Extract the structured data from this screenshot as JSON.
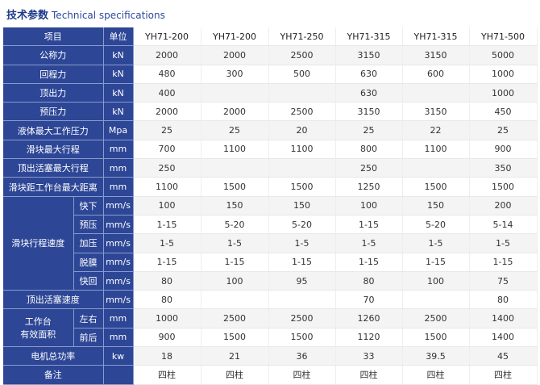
{
  "title": {
    "cn": "技术参数",
    "en": "Technical specifications"
  },
  "header": [
    "项目",
    "单位",
    "YH71-200",
    "YH71-200",
    "YH71-250",
    "YH71-315",
    "YH71-315",
    "YH71-500"
  ],
  "rows": [
    {
      "label": "公称力",
      "unit": "kN",
      "values": [
        "2000",
        "2000",
        "2500",
        "3150",
        "3150",
        "5000"
      ]
    },
    {
      "label": "回程力",
      "unit": "kN",
      "values": [
        "480",
        "300",
        "500",
        "630",
        "600",
        "1000"
      ]
    },
    {
      "label": "顶出力",
      "unit": "kN",
      "values": [
        "400",
        "",
        "",
        "630",
        "",
        "1000"
      ]
    },
    {
      "label": "预压力",
      "unit": "kN",
      "values": [
        "2000",
        "2000",
        "2500",
        "3150",
        "3150",
        "450"
      ]
    },
    {
      "label": "液体最大工作压力",
      "unit": "Mpa",
      "values": [
        "25",
        "25",
        "20",
        "25",
        "22",
        "25"
      ]
    },
    {
      "label": "滑块最大行程",
      "unit": "mm",
      "values": [
        "700",
        "1100",
        "1100",
        "800",
        "1100",
        "900"
      ]
    },
    {
      "label": "顶出活塞最大行程",
      "unit": "mm",
      "values": [
        "250",
        "",
        "",
        "250",
        "",
        "350"
      ]
    },
    {
      "label": "滑块距工作台最大距离",
      "unit": "mm",
      "values": [
        "1100",
        "1500",
        "1500",
        "1250",
        "1500",
        "1500"
      ]
    }
  ],
  "speed": {
    "label": "滑块行程速度",
    "subrows": [
      {
        "label": "快下",
        "unit": "mm/s",
        "values": [
          "100",
          "150",
          "150",
          "100",
          "150",
          "200"
        ]
      },
      {
        "label": "预压",
        "unit": "mm/s",
        "values": [
          "1-15",
          "5-20",
          "5-20",
          "1-15",
          "5-20",
          "5-14"
        ]
      },
      {
        "label": "加压",
        "unit": "mm/s",
        "values": [
          "1-5",
          "1-5",
          "1-5",
          "1-5",
          "1-5",
          "1-5"
        ]
      },
      {
        "label": "脱膜",
        "unit": "mm/s",
        "values": [
          "1-15",
          "1-15",
          "1-15",
          "1-15",
          "1-15",
          "1-15"
        ]
      },
      {
        "label": "快回",
        "unit": "mm/s",
        "values": [
          "80",
          "100",
          "95",
          "80",
          "100",
          "75"
        ]
      }
    ]
  },
  "eject_speed": {
    "label": "顶出活塞速度",
    "unit": "mm/s",
    "values": [
      "80",
      "",
      "",
      "70",
      "",
      "80"
    ]
  },
  "table_area": {
    "label_line1": "工作台",
    "label_line2": "有效面积",
    "subrows": [
      {
        "label": "左右",
        "unit": "mm",
        "values": [
          "1000",
          "2500",
          "2500",
          "1260",
          "2500",
          "1400"
        ]
      },
      {
        "label": "前后",
        "unit": "mm",
        "values": [
          "900",
          "1500",
          "1500",
          "1120",
          "1500",
          "1400"
        ]
      }
    ]
  },
  "power": {
    "label": "电机总功率",
    "unit": "kw",
    "values": [
      "18",
      "21",
      "36",
      "33",
      "39.5",
      "45"
    ]
  },
  "remark": {
    "label": "备注",
    "unit": "",
    "values": [
      "四柱",
      "四柱",
      "四柱",
      "四柱",
      "四柱",
      "四柱"
    ]
  }
}
